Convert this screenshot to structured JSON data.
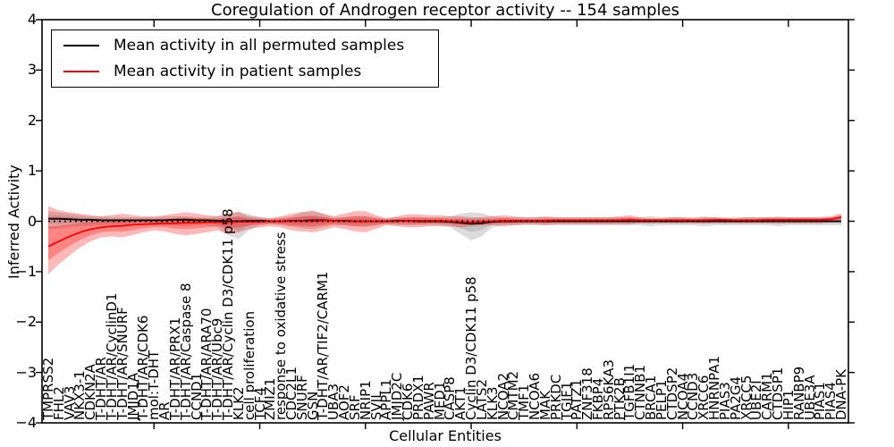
{
  "chart_data": {
    "type": "line",
    "title": "Coregulation of Androgen receptor activity -- 154 samples",
    "xlabel": "Cellular Entities",
    "ylabel": "Inferred Activity",
    "ylim": [
      -4,
      4
    ],
    "yticks": [
      {
        "value": 4,
        "label": "4"
      },
      {
        "value": 3,
        "label": "3"
      },
      {
        "value": 2,
        "label": "2"
      },
      {
        "value": 1,
        "label": "1"
      },
      {
        "value": 0,
        "label": "0"
      },
      {
        "value": -1,
        "label": "−1"
      },
      {
        "value": -2,
        "label": "−2"
      },
      {
        "value": -3,
        "label": "−3"
      },
      {
        "value": -4,
        "label": "−4"
      }
    ],
    "x_major_tick_every": 10,
    "grid": false,
    "zero_line": true,
    "legend_position": "upper left",
    "legend": [
      {
        "label": "Mean activity in all permuted samples",
        "color": "#000000"
      },
      {
        "label": "Mean activity in patient samples",
        "color": "#ff0000"
      }
    ],
    "categories": [
      "TMPRSS2",
      "FHL2",
      "VAV3",
      "NKX3-1",
      "CDKN2A",
      "T-DHT/AR",
      "T-DHT/AR/CyclinD1",
      "T-DHT/AR/SNURF",
      "JMJD1A",
      "T-DHT/AR/CDK6",
      "mol:T-DHT",
      "AR",
      "T-DHT/AR/PRX1",
      "T-DHT/AR/Caspase 8",
      "CCND1",
      "T-DHT/AR/ARA70",
      "T-DHT/AR/Ubc9",
      "T-DHT/AR/Cyclin D3/CDK11 p58",
      "KLK2",
      "cell proliferation",
      "TCF4",
      "ZMIZ1",
      "response to oxidative stress",
      "CDC2L1",
      "SNURF",
      "GSN",
      "T-DHT/AR/TIF2/CARM1",
      "UBA3",
      "AOF2",
      "SRF",
      "NRIP1",
      "SVIL",
      "APPL1",
      "JMJD2C",
      "CDK6",
      "PRDX1",
      "PAWR",
      "MED1",
      "CASP8",
      "AKT1",
      "Cyclin D3/CDK11 p58",
      "LATS2",
      "KLK3",
      "NCOA2",
      "CMTM2",
      "TMF1",
      "NCOA6",
      "MAK",
      "PRKDC",
      "TGIF1",
      "PATZ1",
      "ZNF318",
      "FKBP4",
      "RPS6KA3",
      "PTK2B",
      "TGFB1I1",
      "CTNNB1",
      "BRCA1",
      "PELP1",
      "CTDSP2",
      "NCOA4",
      "CCND3",
      "XRCC6",
      "HNRNPA1",
      "PIAS3",
      "PA2G4",
      "XRCC5",
      "UBE2I",
      "CARM1",
      "CTDSP1",
      "HIP1",
      "RANBP9",
      "UBE3A",
      "PIAS1",
      "PIAS4",
      "DNA-PK"
    ],
    "series": [
      {
        "name": "Mean activity in all permuted samples",
        "color": "#000000",
        "values": [
          0.05,
          0.05,
          0.04,
          0.03,
          0.03,
          0.02,
          0.02,
          0.02,
          0.02,
          0.02,
          0.02,
          0.02,
          0.03,
          0.03,
          0.02,
          0.02,
          0.01,
          0.0,
          0.0,
          0.01,
          0.01,
          0.0,
          0.0,
          0.01,
          0.01,
          0.02,
          0.02,
          0.01,
          0.01,
          0.0,
          0.0,
          0.0,
          0.0,
          0.01,
          0.01,
          0.0,
          0.0,
          0.0,
          -0.01,
          -0.03,
          -0.05,
          -0.04,
          -0.01,
          0.0,
          0.0,
          0.0,
          0.0,
          0.0,
          0.0,
          0.0,
          0.0,
          0.0,
          0.0,
          0.0,
          0.0,
          0.0,
          0.0,
          0.0,
          0.0,
          0.0,
          0.0,
          0.0,
          0.0,
          0.0,
          0.0,
          0.0,
          0.0,
          0.0,
          0.0,
          0.0,
          0.0,
          0.0,
          0.0,
          0.0,
          0.0,
          0.0
        ]
      },
      {
        "name": "Mean activity in patient samples",
        "color": "#ff0000",
        "values": [
          -0.5,
          -0.4,
          -0.3,
          -0.22,
          -0.16,
          -0.12,
          -0.1,
          -0.09,
          -0.07,
          -0.06,
          -0.05,
          -0.04,
          -0.04,
          -0.03,
          -0.03,
          -0.02,
          -0.02,
          -0.02,
          -0.01,
          -0.01,
          -0.01,
          0.0,
          0.0,
          0.0,
          0.0,
          0.0,
          0.01,
          0.01,
          0.0,
          0.0,
          0.0,
          0.0,
          0.0,
          0.0,
          0.01,
          0.01,
          0.01,
          0.01,
          0.0,
          -0.01,
          -0.02,
          -0.01,
          0.0,
          0.01,
          0.01,
          0.01,
          0.01,
          0.01,
          0.02,
          0.02,
          0.02,
          0.02,
          0.02,
          0.02,
          0.02,
          0.03,
          0.02,
          0.02,
          0.02,
          0.02,
          0.02,
          0.02,
          0.02,
          0.03,
          0.03,
          0.02,
          0.02,
          0.02,
          0.03,
          0.03,
          0.03,
          0.03,
          0.03,
          0.03,
          0.04,
          0.08
        ]
      }
    ],
    "bands": [
      {
        "name": "permuted samples spread",
        "color": "#808080",
        "hi": [
          0.2,
          0.18,
          0.15,
          0.12,
          0.1,
          0.1,
          0.08,
          0.08,
          0.08,
          0.08,
          0.08,
          0.1,
          0.1,
          0.1,
          0.08,
          0.08,
          0.1,
          0.15,
          0.2,
          0.14,
          0.08,
          0.06,
          0.08,
          0.1,
          0.18,
          0.22,
          0.15,
          0.08,
          0.08,
          0.1,
          0.1,
          0.08,
          0.06,
          0.08,
          0.08,
          0.08,
          0.08,
          0.08,
          0.1,
          0.15,
          0.18,
          0.16,
          0.1,
          0.08,
          0.08,
          0.08,
          0.08,
          0.08,
          0.08,
          0.08,
          0.08,
          0.08,
          0.08,
          0.08,
          0.08,
          0.08,
          0.08,
          0.1,
          0.08,
          0.08,
          0.08,
          0.08,
          0.1,
          0.08,
          0.08,
          0.08,
          0.08,
          0.08,
          0.08,
          0.1,
          0.08,
          0.08,
          0.08,
          0.08,
          0.08,
          0.08
        ],
        "lo": [
          -0.15,
          -0.15,
          -0.12,
          -0.1,
          -0.1,
          -0.08,
          -0.08,
          -0.08,
          -0.08,
          -0.06,
          -0.08,
          -0.08,
          -0.08,
          -0.1,
          -0.08,
          -0.08,
          -0.12,
          -0.28,
          -0.35,
          -0.18,
          -0.08,
          -0.06,
          -0.08,
          -0.1,
          -0.14,
          -0.16,
          -0.12,
          -0.08,
          -0.08,
          -0.1,
          -0.1,
          -0.08,
          -0.06,
          -0.08,
          -0.08,
          -0.08,
          -0.08,
          -0.08,
          -0.12,
          -0.25,
          -0.38,
          -0.3,
          -0.12,
          -0.08,
          -0.08,
          -0.08,
          -0.08,
          -0.08,
          -0.08,
          -0.08,
          -0.08,
          -0.08,
          -0.08,
          -0.08,
          -0.08,
          -0.08,
          -0.08,
          -0.1,
          -0.08,
          -0.08,
          -0.08,
          -0.08,
          -0.1,
          -0.08,
          -0.08,
          -0.08,
          -0.08,
          -0.08,
          -0.08,
          -0.1,
          -0.08,
          -0.08,
          -0.08,
          -0.08,
          -0.08,
          -0.08
        ]
      },
      {
        "name": "patient samples spread",
        "color": "#ff0000",
        "hi": [
          0.3,
          0.22,
          0.18,
          0.15,
          0.12,
          0.1,
          0.12,
          0.15,
          0.12,
          0.1,
          0.1,
          0.12,
          0.15,
          0.18,
          0.15,
          0.12,
          0.1,
          0.15,
          0.18,
          0.1,
          0.08,
          0.06,
          0.1,
          0.15,
          0.18,
          0.2,
          0.15,
          0.1,
          0.15,
          0.2,
          0.2,
          0.12,
          0.06,
          0.1,
          0.14,
          0.14,
          0.12,
          0.12,
          0.1,
          0.1,
          0.08,
          0.08,
          0.1,
          0.12,
          0.1,
          0.08,
          0.08,
          0.1,
          0.08,
          0.08,
          0.08,
          0.08,
          0.08,
          0.08,
          0.1,
          0.12,
          0.08,
          0.06,
          0.06,
          0.08,
          0.08,
          0.06,
          0.08,
          0.08,
          0.06,
          0.06,
          0.08,
          0.08,
          0.08,
          0.08,
          0.08,
          0.08,
          0.08,
          0.08,
          0.1,
          0.16
        ],
        "lo": [
          -1.05,
          -0.85,
          -0.68,
          -0.52,
          -0.4,
          -0.32,
          -0.3,
          -0.32,
          -0.27,
          -0.22,
          -0.18,
          -0.2,
          -0.25,
          -0.28,
          -0.25,
          -0.22,
          -0.18,
          -0.25,
          -0.22,
          -0.15,
          -0.12,
          -0.1,
          -0.12,
          -0.18,
          -0.2,
          -0.22,
          -0.18,
          -0.12,
          -0.15,
          -0.2,
          -0.22,
          -0.15,
          -0.08,
          -0.1,
          -0.12,
          -0.12,
          -0.1,
          -0.1,
          -0.1,
          -0.12,
          -0.1,
          -0.08,
          -0.08,
          -0.1,
          -0.08,
          -0.06,
          -0.06,
          -0.08,
          -0.06,
          -0.06,
          -0.06,
          -0.06,
          -0.06,
          -0.06,
          -0.06,
          -0.06,
          -0.04,
          -0.04,
          -0.04,
          -0.04,
          -0.04,
          -0.04,
          -0.04,
          -0.04,
          -0.04,
          -0.04,
          -0.04,
          -0.04,
          -0.04,
          -0.04,
          -0.04,
          -0.04,
          -0.04,
          -0.04,
          -0.02,
          0.0
        ]
      }
    ]
  }
}
